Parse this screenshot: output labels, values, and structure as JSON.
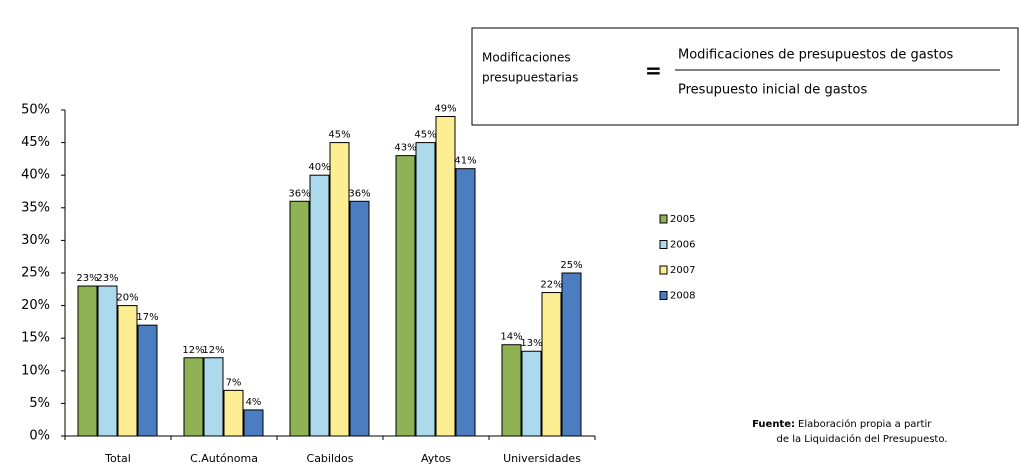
{
  "chart_data": {
    "type": "bar",
    "categories": [
      "Total",
      "C.Autónoma",
      "Cabildos",
      "Aytos",
      "Universidades"
    ],
    "series": [
      {
        "name": "2005",
        "color": "#8fb254",
        "values": [
          23,
          12,
          36,
          43,
          14
        ],
        "value_labels": [
          "23%",
          "12%",
          "36%",
          "43%",
          "14%"
        ]
      },
      {
        "name": "2006",
        "color": "#acd9ec",
        "values": [
          23,
          12,
          40,
          45,
          13
        ],
        "value_labels": [
          "23%",
          "12%",
          "40%",
          "45%",
          "13%"
        ]
      },
      {
        "name": "2007",
        "color": "#fdee94",
        "values": [
          20,
          7,
          45,
          49,
          22
        ],
        "value_labels": [
          "20%",
          "7%",
          "45%",
          "49%",
          "22%"
        ]
      },
      {
        "name": "2008",
        "color": "#4b7dc0",
        "values": [
          17,
          4,
          36,
          41,
          25
        ],
        "value_labels": [
          "17%",
          "4%",
          "36%",
          "41%",
          "25%"
        ]
      }
    ],
    "ylim": [
      0,
      50
    ],
    "yticks": [
      {
        "value": 0,
        "label": "0%"
      },
      {
        "value": 5,
        "label": "5%"
      },
      {
        "value": 10,
        "label": "10%"
      },
      {
        "value": 15,
        "label": "15%"
      },
      {
        "value": 20,
        "label": "20%"
      },
      {
        "value": 25,
        "label": "25%"
      },
      {
        "value": 30,
        "label": "30%"
      },
      {
        "value": 35,
        "label": "35%"
      },
      {
        "value": 40,
        "label": "40%"
      },
      {
        "value": 45,
        "label": "45%"
      },
      {
        "value": 50,
        "label": "50%"
      }
    ],
    "grid": false,
    "legend": "right"
  },
  "formula": {
    "lhs": [
      "Modificaciones",
      "presupuestarias"
    ],
    "equals": "=",
    "numerator": "Modificaciones de presupuestos de gastos",
    "denominator": "Presupuesto inicial de gastos"
  },
  "source": {
    "label": "Fuente:",
    "lines": [
      "Elaboración propia a partir",
      "de la Liquidación del Presupuesto."
    ]
  }
}
